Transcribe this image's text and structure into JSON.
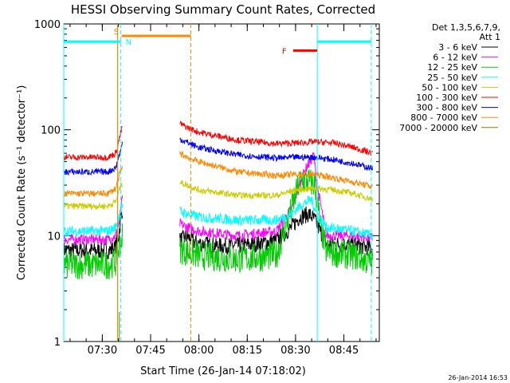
{
  "chart_data": {
    "type": "line",
    "title": "HESSI Observing Summary Count Rates, Corrected",
    "ylabel": "Corrected Count Rate (s⁻¹ detector⁻¹)",
    "xlabel": "Start Time (26-Jan-14 07:18:02)",
    "yscale": "log",
    "ylim": [
      1,
      1000
    ],
    "xlim": [
      7.3006,
      8.9333
    ],
    "x_ticks": [
      "07:30",
      "07:45",
      "08:00",
      "08:15",
      "08:30",
      "08:45"
    ],
    "x_tick_hours": [
      7.5,
      7.75,
      8.0,
      8.25,
      8.5,
      8.75
    ],
    "y_ticks": [
      "1",
      "10",
      "100",
      "1000"
    ],
    "y_tick_values": [
      1,
      10,
      100,
      1000
    ],
    "legend_header": [
      "Det 1,3,5,6,7,9,",
      "Att 1"
    ],
    "legend_position": "right",
    "timestamp": "26-Jan-2014 16:53",
    "series": [
      {
        "name": "3 - 6 keV",
        "color": "#000000",
        "noise": 0.08,
        "points": [
          [
            7.3006,
            7.3
          ],
          [
            7.53,
            7.2
          ],
          [
            7.565,
            7.6
          ],
          [
            7.585,
            10
          ],
          [
            7.598,
            16
          ],
          [
            7.605,
            18
          ],
          [
            7.9,
            9
          ],
          [
            7.94,
            9.8
          ],
          [
            7.98,
            8.6
          ],
          [
            8.1,
            8.0
          ],
          [
            8.25,
            8.1
          ],
          [
            8.4,
            9
          ],
          [
            8.48,
            12
          ],
          [
            8.52,
            15
          ],
          [
            8.57,
            16
          ],
          [
            8.6,
            14
          ],
          [
            8.66,
            8.3
          ],
          [
            8.8,
            8.2
          ],
          [
            8.9,
            7.6
          ]
        ]
      },
      {
        "name": "6 - 12 keV",
        "color": "#ff00ff",
        "noise": 0.05,
        "points": [
          [
            7.3006,
            9.2
          ],
          [
            7.53,
            9.2
          ],
          [
            7.57,
            10
          ],
          [
            7.59,
            14
          ],
          [
            7.598,
            20
          ],
          [
            7.605,
            22
          ],
          [
            7.9,
            13
          ],
          [
            7.94,
            12
          ],
          [
            8.0,
            11
          ],
          [
            8.2,
            10
          ],
          [
            8.4,
            11
          ],
          [
            8.48,
            18
          ],
          [
            8.52,
            30
          ],
          [
            8.55,
            42
          ],
          [
            8.595,
            58
          ],
          [
            8.61,
            30
          ],
          [
            8.66,
            10
          ],
          [
            8.8,
            10
          ],
          [
            8.9,
            9.5
          ]
        ]
      },
      {
        "name": "12 - 25 keV",
        "color": "#00cc00",
        "noise": 0.14,
        "points": [
          [
            7.3006,
            5.3
          ],
          [
            7.53,
            5.3
          ],
          [
            7.57,
            5.6
          ],
          [
            7.59,
            8
          ],
          [
            7.605,
            10
          ],
          [
            7.9,
            7.5
          ],
          [
            7.94,
            7.0
          ],
          [
            8.0,
            6.5
          ],
          [
            8.2,
            6.0
          ],
          [
            8.4,
            6.5
          ],
          [
            8.48,
            18
          ],
          [
            8.52,
            32
          ],
          [
            8.55,
            34
          ],
          [
            8.6,
            30
          ],
          [
            8.63,
            12
          ],
          [
            8.66,
            7.0
          ],
          [
            8.8,
            6.5
          ],
          [
            8.9,
            5.5
          ]
        ]
      },
      {
        "name": "25 - 50 keV",
        "color": "#00ffff",
        "noise": 0.05,
        "points": [
          [
            7.3006,
            11
          ],
          [
            7.53,
            11
          ],
          [
            7.57,
            12
          ],
          [
            7.59,
            16
          ],
          [
            7.605,
            20
          ],
          [
            7.9,
            17
          ],
          [
            7.94,
            16
          ],
          [
            8.0,
            15
          ],
          [
            8.2,
            14
          ],
          [
            8.4,
            14
          ],
          [
            8.48,
            16
          ],
          [
            8.52,
            19
          ],
          [
            8.58,
            22
          ],
          [
            8.62,
            15
          ],
          [
            8.66,
            12
          ],
          [
            8.8,
            11
          ],
          [
            8.9,
            10
          ]
        ]
      },
      {
        "name": "50 - 100 keV",
        "color": "#cccc00",
        "noise": 0.03,
        "points": [
          [
            7.3006,
            19
          ],
          [
            7.53,
            19
          ],
          [
            7.57,
            21
          ],
          [
            7.59,
            28
          ],
          [
            7.605,
            32
          ],
          [
            7.9,
            32
          ],
          [
            7.94,
            30
          ],
          [
            8.0,
            27
          ],
          [
            8.2,
            24
          ],
          [
            8.4,
            24
          ],
          [
            8.5,
            27
          ],
          [
            8.6,
            28
          ],
          [
            8.7,
            27
          ],
          [
            8.8,
            25
          ],
          [
            8.9,
            22
          ]
        ]
      },
      {
        "name": "100 - 300 keV",
        "color": "#ff0000",
        "noise": 0.03,
        "points": [
          [
            7.3006,
            55
          ],
          [
            7.53,
            55
          ],
          [
            7.57,
            60
          ],
          [
            7.59,
            85
          ],
          [
            7.605,
            110
          ],
          [
            7.9,
            115
          ],
          [
            7.94,
            105
          ],
          [
            8.0,
            95
          ],
          [
            8.2,
            80
          ],
          [
            8.4,
            74
          ],
          [
            8.5,
            75
          ],
          [
            8.6,
            77
          ],
          [
            8.7,
            75
          ],
          [
            8.8,
            68
          ],
          [
            8.9,
            60
          ]
        ]
      },
      {
        "name": "300 - 800 keV",
        "color": "#0000ff",
        "noise": 0.03,
        "points": [
          [
            7.3006,
            40
          ],
          [
            7.53,
            40
          ],
          [
            7.57,
            44
          ],
          [
            7.59,
            60
          ],
          [
            7.605,
            75
          ],
          [
            7.9,
            82
          ],
          [
            7.94,
            76
          ],
          [
            8.0,
            68
          ],
          [
            8.2,
            58
          ],
          [
            8.4,
            54
          ],
          [
            8.5,
            55
          ],
          [
            8.6,
            55
          ],
          [
            8.7,
            52
          ],
          [
            8.8,
            48
          ],
          [
            8.9,
            43
          ]
        ]
      },
      {
        "name": "800 - 7000 keV",
        "color": "#ff8800",
        "noise": 0.03,
        "points": [
          [
            7.3006,
            25
          ],
          [
            7.53,
            25
          ],
          [
            7.57,
            28
          ],
          [
            7.59,
            38
          ],
          [
            7.605,
            45
          ],
          [
            7.9,
            60
          ],
          [
            7.94,
            55
          ],
          [
            8.0,
            50
          ],
          [
            8.2,
            40
          ],
          [
            8.4,
            37
          ],
          [
            8.5,
            38
          ],
          [
            8.6,
            38
          ],
          [
            8.7,
            35
          ],
          [
            8.8,
            32
          ],
          [
            8.9,
            29
          ]
        ]
      },
      {
        "name": "7000 - 20000 keV",
        "color": "#808000",
        "noise": 0,
        "points": []
      }
    ],
    "annotations": [
      {
        "label": "S",
        "color": "#ff8800",
        "x_start": 7.6,
        "x_end": 7.9583,
        "y": 770
      },
      {
        "label": "N",
        "color": "#00ffff",
        "x_start": 7.3006,
        "x_end": 7.5961,
        "y": 680
      },
      {
        "label": "",
        "color": "#00ffff",
        "x_start": 8.6122,
        "x_end": 8.8917,
        "y": 680
      },
      {
        "label": "F",
        "color": "#ff0000",
        "x_start": 8.4875,
        "x_end": 8.6122,
        "y": 560
      }
    ],
    "vertical_markers": [
      {
        "x": 7.3006,
        "color": "#00ffff",
        "style": "solid"
      },
      {
        "x": 7.5961,
        "color": "#00ffff",
        "style": "dashed"
      },
      {
        "x": 8.6122,
        "color": "#00ffff",
        "style": "solid"
      },
      {
        "x": 8.8917,
        "color": "#00ffff",
        "style": "dashed"
      },
      {
        "x": 7.5794,
        "color": "#ff8800",
        "style": "solid"
      },
      {
        "x": 7.9583,
        "color": "#ff8800",
        "style": "dashed"
      }
    ]
  }
}
